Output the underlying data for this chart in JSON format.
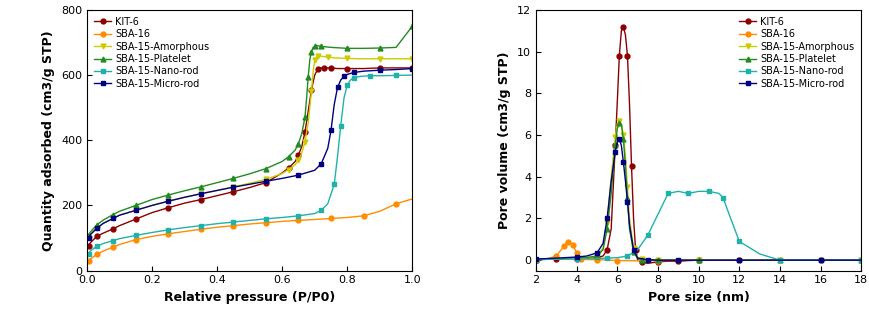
{
  "colors": {
    "KIT-6": "#8B0000",
    "SBA-16": "#FF8C00",
    "SBA-15-Amorphous": "#CCCC00",
    "SBA-15-Platelet": "#228B22",
    "SBA-15-Nano-rod": "#20B2AA",
    "SBA-15-Micro-rod": "#000080"
  },
  "markers": {
    "KIT-6": "o",
    "SBA-16": "o",
    "SBA-15-Amorphous": "v",
    "SBA-15-Platelet": "^",
    "SBA-15-Nano-rod": "s",
    "SBA-15-Micro-rod": "s"
  },
  "left_plot": {
    "xlabel": "Relative pressure (P/P0)",
    "ylabel": "Quantity adsorbed (cm3/g STP)",
    "xlim": [
      0.0,
      1.0
    ],
    "ylim": [
      0,
      800
    ],
    "yticks": [
      0,
      200,
      400,
      600,
      800
    ],
    "xticks": [
      0.0,
      0.2,
      0.4,
      0.6,
      0.8,
      1.0
    ],
    "KIT-6": {
      "x": [
        0.005,
        0.01,
        0.03,
        0.05,
        0.08,
        0.1,
        0.15,
        0.2,
        0.25,
        0.3,
        0.35,
        0.4,
        0.45,
        0.5,
        0.55,
        0.6,
        0.62,
        0.64,
        0.65,
        0.66,
        0.67,
        0.68,
        0.69,
        0.7,
        0.71,
        0.72,
        0.73,
        0.74,
        0.75,
        0.77,
        0.8,
        0.85,
        0.9,
        0.95,
        1.0
      ],
      "y": [
        75,
        85,
        105,
        115,
        128,
        138,
        158,
        178,
        193,
        207,
        218,
        230,
        242,
        255,
        270,
        300,
        315,
        335,
        355,
        380,
        425,
        490,
        555,
        600,
        620,
        622,
        622,
        622,
        622,
        620,
        620,
        620,
        622,
        622,
        622
      ]
    },
    "SBA-16": {
      "x": [
        0.005,
        0.01,
        0.03,
        0.05,
        0.08,
        0.1,
        0.15,
        0.2,
        0.25,
        0.3,
        0.35,
        0.4,
        0.45,
        0.5,
        0.55,
        0.6,
        0.65,
        0.7,
        0.75,
        0.8,
        0.85,
        0.9,
        0.95,
        1.0
      ],
      "y": [
        28,
        35,
        50,
        60,
        72,
        80,
        95,
        105,
        113,
        120,
        127,
        133,
        138,
        143,
        147,
        151,
        154,
        157,
        160,
        163,
        168,
        182,
        205,
        220
      ]
    },
    "SBA-15-Amorphous": {
      "x": [
        0.005,
        0.01,
        0.03,
        0.05,
        0.08,
        0.1,
        0.15,
        0.2,
        0.25,
        0.3,
        0.35,
        0.4,
        0.45,
        0.5,
        0.55,
        0.6,
        0.62,
        0.64,
        0.65,
        0.66,
        0.67,
        0.68,
        0.69,
        0.695,
        0.7,
        0.705,
        0.71,
        0.72,
        0.74,
        0.76,
        0.8,
        0.85,
        0.9,
        0.95,
        1.0
      ],
      "y": [
        100,
        110,
        130,
        145,
        160,
        170,
        185,
        200,
        213,
        225,
        235,
        246,
        257,
        268,
        280,
        298,
        310,
        325,
        340,
        360,
        395,
        455,
        550,
        610,
        645,
        655,
        660,
        658,
        655,
        653,
        651,
        650,
        650,
        650,
        650
      ]
    },
    "SBA-15-Platelet": {
      "x": [
        0.005,
        0.01,
        0.03,
        0.05,
        0.08,
        0.1,
        0.15,
        0.2,
        0.25,
        0.3,
        0.35,
        0.4,
        0.45,
        0.5,
        0.55,
        0.6,
        0.62,
        0.64,
        0.65,
        0.66,
        0.67,
        0.675,
        0.68,
        0.685,
        0.69,
        0.695,
        0.7,
        0.71,
        0.72,
        0.75,
        0.8,
        0.85,
        0.9,
        0.95,
        1.0
      ],
      "y": [
        108,
        118,
        140,
        155,
        172,
        182,
        200,
        218,
        232,
        245,
        257,
        270,
        283,
        297,
        313,
        335,
        350,
        370,
        390,
        420,
        470,
        530,
        595,
        648,
        672,
        685,
        688,
        690,
        688,
        685,
        682,
        682,
        683,
        685,
        750
      ]
    },
    "SBA-15-Nano-rod": {
      "x": [
        0.005,
        0.01,
        0.03,
        0.05,
        0.08,
        0.1,
        0.15,
        0.2,
        0.25,
        0.3,
        0.35,
        0.4,
        0.45,
        0.5,
        0.55,
        0.6,
        0.65,
        0.7,
        0.72,
        0.74,
        0.76,
        0.77,
        0.78,
        0.79,
        0.8,
        0.81,
        0.82,
        0.84,
        0.87,
        0.9,
        0.95,
        1.0
      ],
      "y": [
        50,
        60,
        75,
        83,
        92,
        98,
        108,
        117,
        125,
        132,
        138,
        144,
        149,
        154,
        159,
        163,
        168,
        175,
        185,
        205,
        265,
        350,
        445,
        530,
        570,
        585,
        592,
        596,
        598,
        598,
        599,
        600
      ]
    },
    "SBA-15-Micro-rod": {
      "x": [
        0.005,
        0.01,
        0.03,
        0.05,
        0.08,
        0.1,
        0.15,
        0.2,
        0.25,
        0.3,
        0.35,
        0.4,
        0.45,
        0.5,
        0.55,
        0.6,
        0.65,
        0.7,
        0.72,
        0.74,
        0.75,
        0.76,
        0.77,
        0.78,
        0.79,
        0.8,
        0.82,
        0.85,
        0.9,
        0.95,
        1.0
      ],
      "y": [
        100,
        110,
        130,
        145,
        160,
        170,
        185,
        200,
        213,
        225,
        236,
        246,
        256,
        265,
        274,
        283,
        293,
        308,
        328,
        375,
        430,
        510,
        562,
        585,
        596,
        602,
        608,
        612,
        615,
        617,
        620
      ]
    }
  },
  "right_plot": {
    "xlabel": "Pore size (nm)",
    "ylabel": "Pore volume (cm3/g STP)",
    "xlim": [
      2,
      18
    ],
    "ylim": [
      -0.5,
      12
    ],
    "yticks": [
      0,
      2,
      4,
      6,
      8,
      10,
      12
    ],
    "xticks": [
      2,
      4,
      6,
      8,
      10,
      12,
      14,
      16,
      18
    ],
    "KIT-6": {
      "x": [
        2.0,
        2.5,
        3.0,
        3.5,
        4.0,
        4.5,
        5.0,
        5.3,
        5.5,
        5.7,
        5.9,
        6.0,
        6.1,
        6.2,
        6.3,
        6.4,
        6.5,
        6.6,
        6.7,
        6.8,
        6.9,
        7.0,
        7.2,
        7.5,
        8.0,
        8.5,
        9.0,
        9.5,
        10.0,
        11.0,
        12.0,
        14.0,
        16.0,
        18.0
      ],
      "y": [
        0.03,
        0.04,
        0.05,
        0.06,
        0.07,
        0.08,
        0.12,
        0.2,
        0.5,
        1.5,
        5.5,
        7.6,
        9.8,
        11.0,
        11.2,
        10.8,
        9.8,
        7.5,
        4.5,
        2.0,
        0.5,
        0.02,
        -0.1,
        -0.15,
        -0.08,
        -0.05,
        -0.05,
        -0.02,
        0.0,
        0.0,
        0.0,
        0.0,
        0.0,
        0.0
      ]
    },
    "SBA-16": {
      "x": [
        2.0,
        2.5,
        3.0,
        3.2,
        3.4,
        3.5,
        3.6,
        3.7,
        3.8,
        3.9,
        4.0,
        4.1,
        4.2,
        4.5,
        5.0,
        5.5,
        6.0,
        7.0,
        8.0,
        10.0,
        12.0,
        14.0,
        16.0,
        18.0
      ],
      "y": [
        0.02,
        0.05,
        0.2,
        0.45,
        0.7,
        0.82,
        0.88,
        0.85,
        0.75,
        0.55,
        0.35,
        0.18,
        0.08,
        0.03,
        0.02,
        0.01,
        -0.02,
        -0.03,
        -0.02,
        0.0,
        0.0,
        0.0,
        0.0,
        0.0
      ]
    },
    "SBA-15-Amorphous": {
      "x": [
        2.0,
        3.0,
        4.0,
        4.5,
        5.0,
        5.3,
        5.5,
        5.7,
        5.9,
        6.0,
        6.1,
        6.2,
        6.3,
        6.4,
        6.5,
        6.6,
        6.8,
        7.0,
        7.2,
        7.5,
        8.0,
        9.0,
        10.0,
        12.0,
        14.0,
        16.0,
        18.0
      ],
      "y": [
        0.03,
        0.05,
        0.08,
        0.1,
        0.2,
        0.6,
        1.8,
        4.0,
        5.9,
        6.55,
        6.65,
        6.55,
        6.0,
        5.0,
        3.5,
        2.0,
        0.6,
        0.15,
        0.05,
        0.02,
        0.0,
        0.0,
        0.0,
        0.0,
        0.0,
        0.0,
        0.0
      ]
    },
    "SBA-15-Platelet": {
      "x": [
        2.0,
        3.0,
        4.0,
        4.5,
        5.0,
        5.3,
        5.5,
        5.7,
        5.9,
        6.0,
        6.1,
        6.2,
        6.3,
        6.4,
        6.5,
        6.6,
        6.8,
        7.0,
        7.2,
        7.5,
        8.0,
        9.0,
        10.0,
        12.0,
        14.0,
        16.0,
        18.0
      ],
      "y": [
        0.03,
        0.06,
        0.1,
        0.13,
        0.2,
        0.5,
        1.5,
        3.2,
        5.5,
        6.3,
        6.6,
        6.5,
        5.8,
        4.5,
        3.0,
        1.5,
        0.4,
        0.08,
        0.02,
        0.01,
        0.0,
        0.0,
        0.0,
        0.0,
        0.0,
        0.0,
        0.0
      ]
    },
    "SBA-15-Nano-rod": {
      "x": [
        2.0,
        3.0,
        4.0,
        5.0,
        5.5,
        6.0,
        6.5,
        7.0,
        7.5,
        8.0,
        8.5,
        9.0,
        9.5,
        10.0,
        10.5,
        11.0,
        11.2,
        11.5,
        12.0,
        13.0,
        14.0,
        15.0,
        16.0,
        17.0,
        18.0
      ],
      "y": [
        0.03,
        0.05,
        0.07,
        0.08,
        0.1,
        0.12,
        0.2,
        0.5,
        1.2,
        2.2,
        3.2,
        3.3,
        3.2,
        3.3,
        3.3,
        3.2,
        3.0,
        2.2,
        0.9,
        0.3,
        0.0,
        0.0,
        0.0,
        0.0,
        0.0
      ]
    },
    "SBA-15-Micro-rod": {
      "x": [
        2.0,
        3.0,
        4.0,
        4.5,
        5.0,
        5.3,
        5.5,
        5.7,
        5.9,
        6.0,
        6.1,
        6.2,
        6.3,
        6.4,
        6.5,
        6.6,
        6.8,
        7.0,
        7.5,
        8.0,
        9.0,
        10.0,
        12.0,
        14.0,
        16.0,
        18.0
      ],
      "y": [
        0.05,
        0.1,
        0.15,
        0.2,
        0.35,
        0.8,
        2.0,
        3.8,
        5.2,
        5.65,
        5.8,
        5.5,
        4.7,
        3.8,
        2.8,
        1.7,
        0.5,
        0.1,
        0.02,
        0.0,
        0.0,
        0.0,
        0.0,
        0.0,
        0.0,
        0.0
      ]
    }
  },
  "legend_labels": [
    "KIT-6",
    "SBA-16",
    "SBA-15-Amorphous",
    "SBA-15-Platelet",
    "SBA-15-Nano-rod",
    "SBA-15-Micro-rod"
  ]
}
